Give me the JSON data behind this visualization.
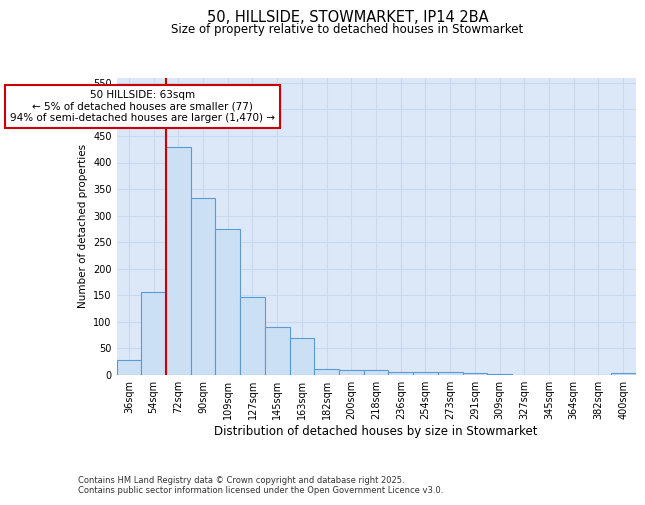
{
  "title": "50, HILLSIDE, STOWMARKET, IP14 2BA",
  "subtitle": "Size of property relative to detached houses in Stowmarket",
  "xlabel": "Distribution of detached houses by size in Stowmarket",
  "ylabel": "Number of detached properties",
  "categories": [
    "36sqm",
    "54sqm",
    "72sqm",
    "90sqm",
    "109sqm",
    "127sqm",
    "145sqm",
    "163sqm",
    "182sqm",
    "200sqm",
    "218sqm",
    "236sqm",
    "254sqm",
    "273sqm",
    "291sqm",
    "309sqm",
    "327sqm",
    "345sqm",
    "364sqm",
    "382sqm",
    "400sqm"
  ],
  "values": [
    28,
    157,
    430,
    333,
    275,
    147,
    90,
    70,
    12,
    9,
    9,
    5,
    5,
    5,
    3,
    1,
    0,
    0,
    0,
    0,
    3
  ],
  "bar_color": "#cce0f5",
  "bar_edge_color": "#5b9bd5",
  "vline_x": 1.5,
  "vline_color": "#cc0000",
  "annotation_text": "50 HILLSIDE: 63sqm\n← 5% of detached houses are smaller (77)\n94% of semi-detached houses are larger (1,470) →",
  "annotation_box_color": "#ffffff",
  "annotation_box_edge_color": "#cc0000",
  "grid_color": "#c8d8ee",
  "plot_bg_color": "#dce8f8",
  "fig_bg_color": "#ffffff",
  "ylim": [
    0,
    560
  ],
  "yticks": [
    0,
    50,
    100,
    150,
    200,
    250,
    300,
    350,
    400,
    450,
    500,
    550
  ],
  "footer": "Contains HM Land Registry data © Crown copyright and database right 2025.\nContains public sector information licensed under the Open Government Licence v3.0.",
  "title_fontsize": 10.5,
  "subtitle_fontsize": 8.5,
  "xlabel_fontsize": 8.5,
  "ylabel_fontsize": 7.5,
  "tick_fontsize": 7,
  "annotation_fontsize": 7.5,
  "footer_fontsize": 6
}
